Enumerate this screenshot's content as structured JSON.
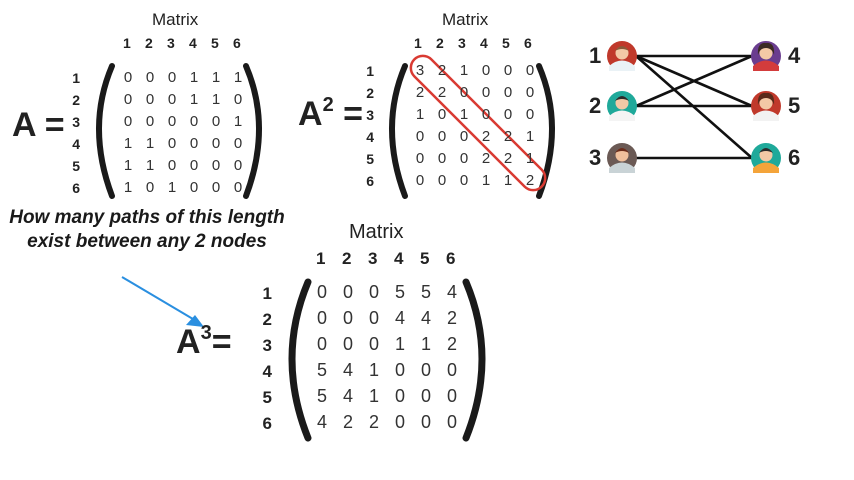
{
  "matrix_a": {
    "title": "Matrix",
    "label": "A",
    "equals": "=",
    "col_headers": [
      "1",
      "2",
      "3",
      "4",
      "5",
      "6"
    ],
    "row_headers": [
      "1",
      "2",
      "3",
      "4",
      "5",
      "6"
    ],
    "rows": [
      [
        "0",
        "0",
        "0",
        "1",
        "1",
        "1"
      ],
      [
        "0",
        "0",
        "0",
        "1",
        "1",
        "0"
      ],
      [
        "0",
        "0",
        "0",
        "0",
        "0",
        "1"
      ],
      [
        "1",
        "1",
        "0",
        "0",
        "0",
        "0"
      ],
      [
        "1",
        "1",
        "0",
        "0",
        "0",
        "0"
      ],
      [
        "1",
        "0",
        "1",
        "0",
        "0",
        "0"
      ]
    ]
  },
  "matrix_a2": {
    "title": "Matrix",
    "label": "A",
    "exponent": "2",
    "equals": "=",
    "col_headers": [
      "1",
      "2",
      "3",
      "4",
      "5",
      "6"
    ],
    "row_headers": [
      "1",
      "2",
      "3",
      "4",
      "5",
      "6"
    ],
    "rows": [
      [
        "3",
        "2",
        "1",
        "0",
        "0",
        "0"
      ],
      [
        "2",
        "2",
        "0",
        "0",
        "0",
        "0"
      ],
      [
        "1",
        "0",
        "1",
        "0",
        "0",
        "0"
      ],
      [
        "0",
        "0",
        "0",
        "2",
        "2",
        "1"
      ],
      [
        "0",
        "0",
        "0",
        "2",
        "2",
        "1"
      ],
      [
        "0",
        "0",
        "0",
        "1",
        "1",
        "2"
      ]
    ],
    "highlight_color": "#d93a32"
  },
  "matrix_a3": {
    "title": "Matrix",
    "label": "A",
    "exponent": "3",
    "equals": "=",
    "col_headers": [
      "1",
      "2",
      "3",
      "4",
      "5",
      "6"
    ],
    "row_headers": [
      "1",
      "2",
      "3",
      "4",
      "5",
      "6"
    ],
    "rows": [
      [
        "0",
        "0",
        "0",
        "5",
        "5",
        "4"
      ],
      [
        "0",
        "0",
        "0",
        "4",
        "4",
        "2"
      ],
      [
        "0",
        "0",
        "0",
        "1",
        "1",
        "2"
      ],
      [
        "5",
        "4",
        "1",
        "0",
        "0",
        "0"
      ],
      [
        "5",
        "4",
        "1",
        "0",
        "0",
        "0"
      ],
      [
        "4",
        "2",
        "2",
        "0",
        "0",
        "0"
      ]
    ]
  },
  "question": "How many paths of this length exist between any 2 nodes",
  "arrow_color": "#2a8fe0",
  "graph": {
    "left_nodes": [
      {
        "label": "1",
        "color": "#c0392b",
        "icon": "person-avatar-icon"
      },
      {
        "label": "2",
        "color": "#1fa99a",
        "icon": "person-avatar-icon"
      },
      {
        "label": "3",
        "color": "#6b5a55",
        "icon": "person-avatar-icon"
      }
    ],
    "right_nodes": [
      {
        "label": "4",
        "color": "#6a3d8f",
        "icon": "person-avatar-icon"
      },
      {
        "label": "5",
        "color": "#c0392b",
        "icon": "person-avatar-icon"
      },
      {
        "label": "6",
        "color": "#1fa99a",
        "icon": "person-avatar-icon"
      }
    ],
    "edges": [
      [
        "1",
        "4"
      ],
      [
        "1",
        "5"
      ],
      [
        "1",
        "6"
      ],
      [
        "2",
        "4"
      ],
      [
        "2",
        "5"
      ],
      [
        "3",
        "6"
      ]
    ]
  }
}
